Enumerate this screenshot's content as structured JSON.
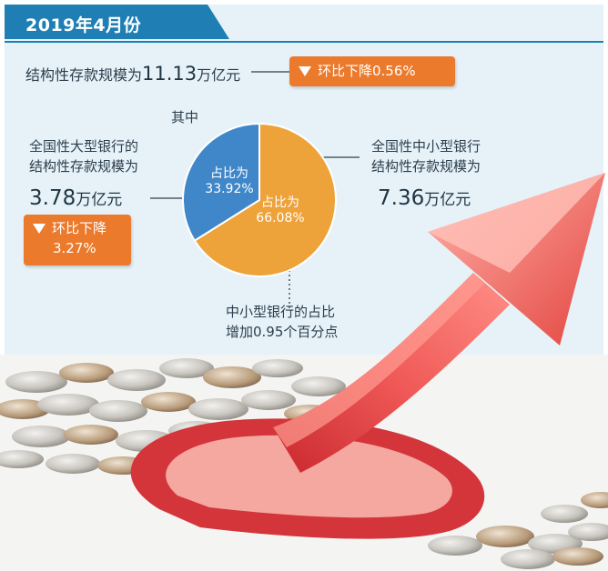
{
  "header": {
    "title": "2019年4月份"
  },
  "total": {
    "label": "结构性存款规模为",
    "value": "11.13",
    "unit": "万亿元",
    "change": "环比下降0.56%"
  },
  "breakdown_label": "其中",
  "large_banks": {
    "line1": "全国性大型银行的",
    "line2": "结构性存款规模为",
    "value": "3.78",
    "unit": "万亿元",
    "change_line1": "环比下降",
    "change_line2": "3.27%"
  },
  "small_medium_banks": {
    "line1": "全国性中小型银行",
    "line2": "结构性存款规模为",
    "value": "7.36",
    "unit": "万亿元"
  },
  "note": {
    "line1": "中小型银行的占比",
    "line2": "增加0.95个百分点"
  },
  "colors": {
    "header": "#1f7fb4",
    "panel": "#e6f2f8",
    "badge": "#ec7a2c",
    "slice_small_medium": "#eea23a",
    "slice_large": "#3f87c9",
    "arrow": "#e8474b"
  },
  "chart_data": {
    "type": "pie",
    "slices": [
      {
        "name": "全国性大型银行",
        "label": "占比为",
        "value": 33.92,
        "value_label": "33.92%",
        "color": "#3f87c9"
      },
      {
        "name": "全国性中小型银行",
        "label": "占比为",
        "value": 66.08,
        "value_label": "66.08%",
        "color": "#eea23a"
      }
    ]
  }
}
